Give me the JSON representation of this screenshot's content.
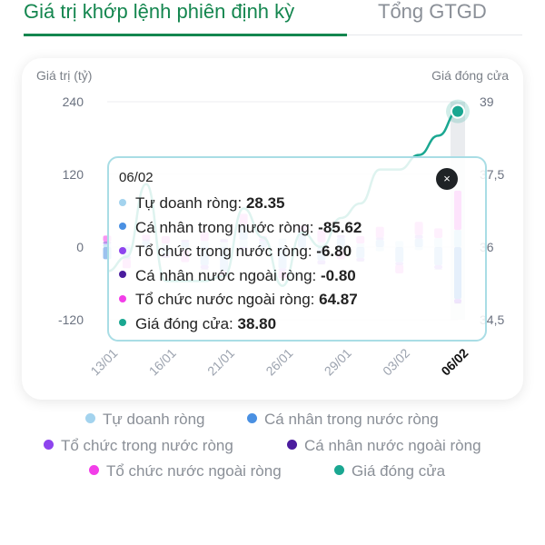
{
  "tabs": [
    {
      "label": "Giá trị khớp lệnh phiên định kỳ",
      "active": true
    },
    {
      "label": "Tổng GTGD",
      "active": false
    }
  ],
  "chart_data": {
    "type": "bar",
    "left_axis_label": "Giá trị (tỷ)",
    "right_axis_label": "Giá đóng cửa",
    "left_ticks": [
      "240",
      "120",
      "0",
      "-120"
    ],
    "right_ticks": [
      "39",
      "37,5",
      "36",
      "34,5"
    ],
    "ylim_left": [
      -120,
      240
    ],
    "ylim_right": [
      34.5,
      39
    ],
    "x_tick_labels": [
      "13/01",
      "16/01",
      "21/01",
      "26/01",
      "29/01",
      "03/02",
      "06/02"
    ],
    "x_tick_index": [
      0,
      3,
      6,
      9,
      12,
      15,
      18
    ],
    "selected_index": 18,
    "categories_count": 19,
    "series": [
      {
        "name": "Tự doanh ròng",
        "color": "#a3d3ee",
        "values": [
          5,
          4,
          -3,
          6,
          -5,
          10,
          8,
          12,
          -6,
          14,
          -4,
          8,
          -5,
          6,
          -7,
          10,
          -5,
          15,
          28.35
        ]
      },
      {
        "name": "Cá nhân trong nước ròng",
        "color": "#4a90e2",
        "values": [
          -20,
          -15,
          10,
          -12,
          8,
          -30,
          -40,
          25,
          10,
          -35,
          20,
          -22,
          15,
          -18,
          12,
          -25,
          14,
          -30,
          -85.62
        ]
      },
      {
        "name": "Tổ chức trong nước ròng",
        "color": "#8e44ee",
        "values": [
          3,
          -4,
          2,
          -5,
          3,
          -6,
          4,
          -5,
          3,
          -4,
          5,
          -6,
          4,
          -5,
          3,
          -4,
          5,
          -6,
          -6.8
        ]
      },
      {
        "name": "Cá nhân nước ngoài ròng",
        "color": "#4b1d9e",
        "values": [
          1,
          -1,
          0.5,
          -0.8,
          0.6,
          -1,
          0.7,
          -0.5,
          0.6,
          -0.7,
          0.8,
          -0.6,
          0.5,
          -0.9,
          0.6,
          -0.5,
          0.7,
          -0.8,
          -0.8
        ]
      },
      {
        "name": "Tổ chức nước ngoài ròng",
        "color": "#f23ee8",
        "values": [
          10,
          -15,
          8,
          12,
          -20,
          15,
          -10,
          18,
          5,
          -12,
          10,
          20,
          -15,
          12,
          18,
          -14,
          22,
          16,
          64.87
        ]
      },
      {
        "name": "Giá đóng cửa",
        "color": "#1aa791",
        "kind": "line",
        "values": [
          35.5,
          35.8,
          37.3,
          35.3,
          35.3,
          35.3,
          35.4,
          36.8,
          36.2,
          35.2,
          36.3,
          36.0,
          36.6,
          36.9,
          37.6,
          37.6,
          37.9,
          38.3,
          38.8
        ]
      }
    ]
  },
  "tooltip": {
    "date": "06/02",
    "close_icon": "×",
    "rows": [
      {
        "label": "Tự doanh ròng: ",
        "value": "28.35",
        "color": "#a3d3ee"
      },
      {
        "label": "Cá nhân trong nước ròng: ",
        "value": "-85.62",
        "color": "#4a90e2"
      },
      {
        "label": "Tổ chức trong nước ròng: ",
        "value": "-6.80",
        "color": "#8e44ee"
      },
      {
        "label": "Cá nhân nước ngoài ròng: ",
        "value": "-0.80",
        "color": "#4b1d9e"
      },
      {
        "label": "Tổ chức nước ngoài ròng: ",
        "value": "64.87",
        "color": "#f23ee8"
      },
      {
        "label": "Giá đóng cửa: ",
        "value": "38.80",
        "color": "#1aa791"
      }
    ]
  },
  "legend": [
    {
      "label": "Tự doanh ròng",
      "color": "#a3d3ee"
    },
    {
      "label": "Cá nhân trong nước ròng",
      "color": "#4a90e2"
    },
    {
      "label": "Tổ chức trong nước ròng",
      "color": "#8e44ee"
    },
    {
      "label": "Cá nhân nước ngoài ròng",
      "color": "#4b1d9e"
    },
    {
      "label": "Tổ chức nước ngoài ròng",
      "color": "#f23ee8"
    },
    {
      "label": "Giá đóng cửa",
      "color": "#1aa791"
    }
  ]
}
